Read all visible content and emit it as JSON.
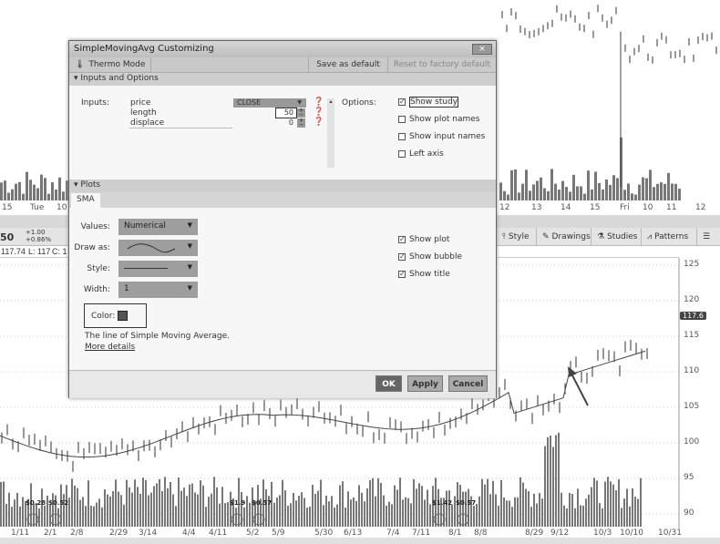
{
  "top_chart": {
    "time_labels_left": [
      "15",
      "Tue",
      "10"
    ],
    "time_labels_right": [
      "12",
      "13",
      "14",
      "15",
      "Fri",
      "10",
      "11",
      "12"
    ]
  },
  "toolbar": {
    "last": "50",
    "change": "+1.00",
    "change_pct": "+0.86%",
    "quote": [
      "117.74",
      "L: 117",
      "C: 1"
    ],
    "style": "Style",
    "drawings": "Drawings",
    "studies": "Studies",
    "patterns": "Patterns",
    "menu_icon": "list-icon"
  },
  "lower_chart": {
    "price_axis": [
      "125",
      "120",
      "115",
      "110",
      "105",
      "100",
      "95",
      "90"
    ],
    "last_price_badge": "117.6",
    "dates": [
      "1/11",
      "2/1",
      "2/8",
      "2/29",
      "3/14",
      "4/4",
      "4/11",
      "5/2",
      "5/9",
      "5/30",
      "6/13",
      "7/4",
      "7/11",
      "8/1",
      "8/8",
      "8/29",
      "9/12",
      "10/3",
      "10/10",
      "10/31"
    ],
    "dividends": [
      "$0.28",
      "$0.52",
      "$1.9",
      "$0.57",
      "$1.42",
      "$0.57"
    ]
  },
  "dialog": {
    "title": "SimpleMovingAvg Customizing",
    "close": "×",
    "thermo": "Thermo Mode",
    "save_default": "Save as default",
    "reset_default": "Reset to factory default",
    "inputs_section": "Inputs and Options",
    "inputs_label": "Inputs:",
    "inputs": [
      {
        "name": "price",
        "value": "CLOSE"
      },
      {
        "name": "length",
        "value": "50"
      },
      {
        "name": "displace",
        "value": "0"
      }
    ],
    "options_label": "Options:",
    "options": [
      {
        "label": "Show study",
        "checked": true
      },
      {
        "label": "Show plot names",
        "checked": false
      },
      {
        "label": "Show input names",
        "checked": false
      },
      {
        "label": "Left axis",
        "checked": false
      }
    ],
    "plots_section": "Plots",
    "plot_tab": "SMA",
    "values_label": "Values:",
    "values": "Numerical",
    "draw_as_label": "Draw as:",
    "style_label": "Style:",
    "width_label": "Width:",
    "width": "1",
    "color_label": "Color:",
    "color": "#555555",
    "plot_options": [
      {
        "label": "Show plot",
        "checked": true
      },
      {
        "label": "Show bubble",
        "checked": true
      },
      {
        "label": "Show title",
        "checked": true
      }
    ],
    "description": "The line of Simple Moving Average.",
    "more_details": "More details",
    "ok": "OK",
    "apply": "Apply",
    "cancel": "Cancel"
  }
}
